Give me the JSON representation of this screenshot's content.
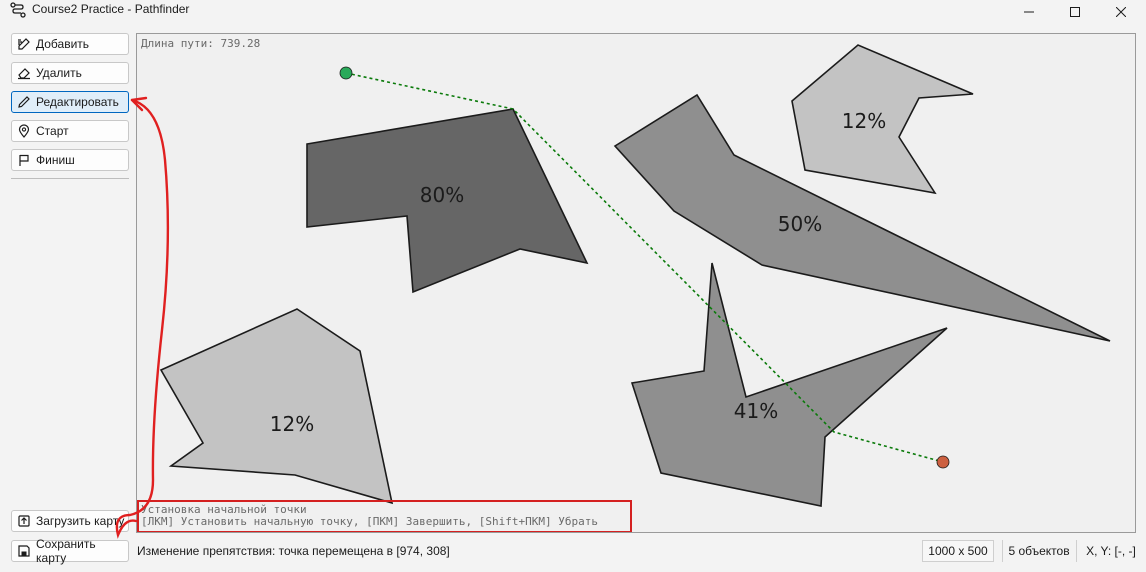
{
  "window": {
    "title": "Course2 Practice - Pathfinder"
  },
  "toolbar": {
    "add": "Добавить",
    "delete": "Удалить",
    "edit": "Редактировать",
    "start": "Старт",
    "finish": "Финиш",
    "load_map": "Загрузить карту",
    "save_map": "Сохранить карту"
  },
  "canvas": {
    "path_length": "Длина пути: 739.28",
    "hint_title": "Установка начальной точки",
    "hint_keys": "[ЛКМ] Установить начальную точку, [ПКМ] Завершить, [Shift+ПКМ] Убрать",
    "obstacles": [
      {
        "label": "80%",
        "color": "#666666"
      },
      {
        "label": "12%",
        "color": "#c3c3c3"
      },
      {
        "label": "50%",
        "color": "#8f8f8f"
      },
      {
        "label": "12%",
        "color": "#c3c3c3"
      },
      {
        "label": "41%",
        "color": "#8f8f8f"
      }
    ],
    "start_color": "#2aaa5a",
    "finish_color": "#cc6040",
    "path_color": "#0a7a0a"
  },
  "status": {
    "message": "Изменение препятствия: точка перемещена в [974, 308]",
    "size": "1000 x 500",
    "objects": "5 объектов",
    "coords": "X, Y: [-, -]"
  },
  "annotation": {
    "color": "#e02020"
  }
}
